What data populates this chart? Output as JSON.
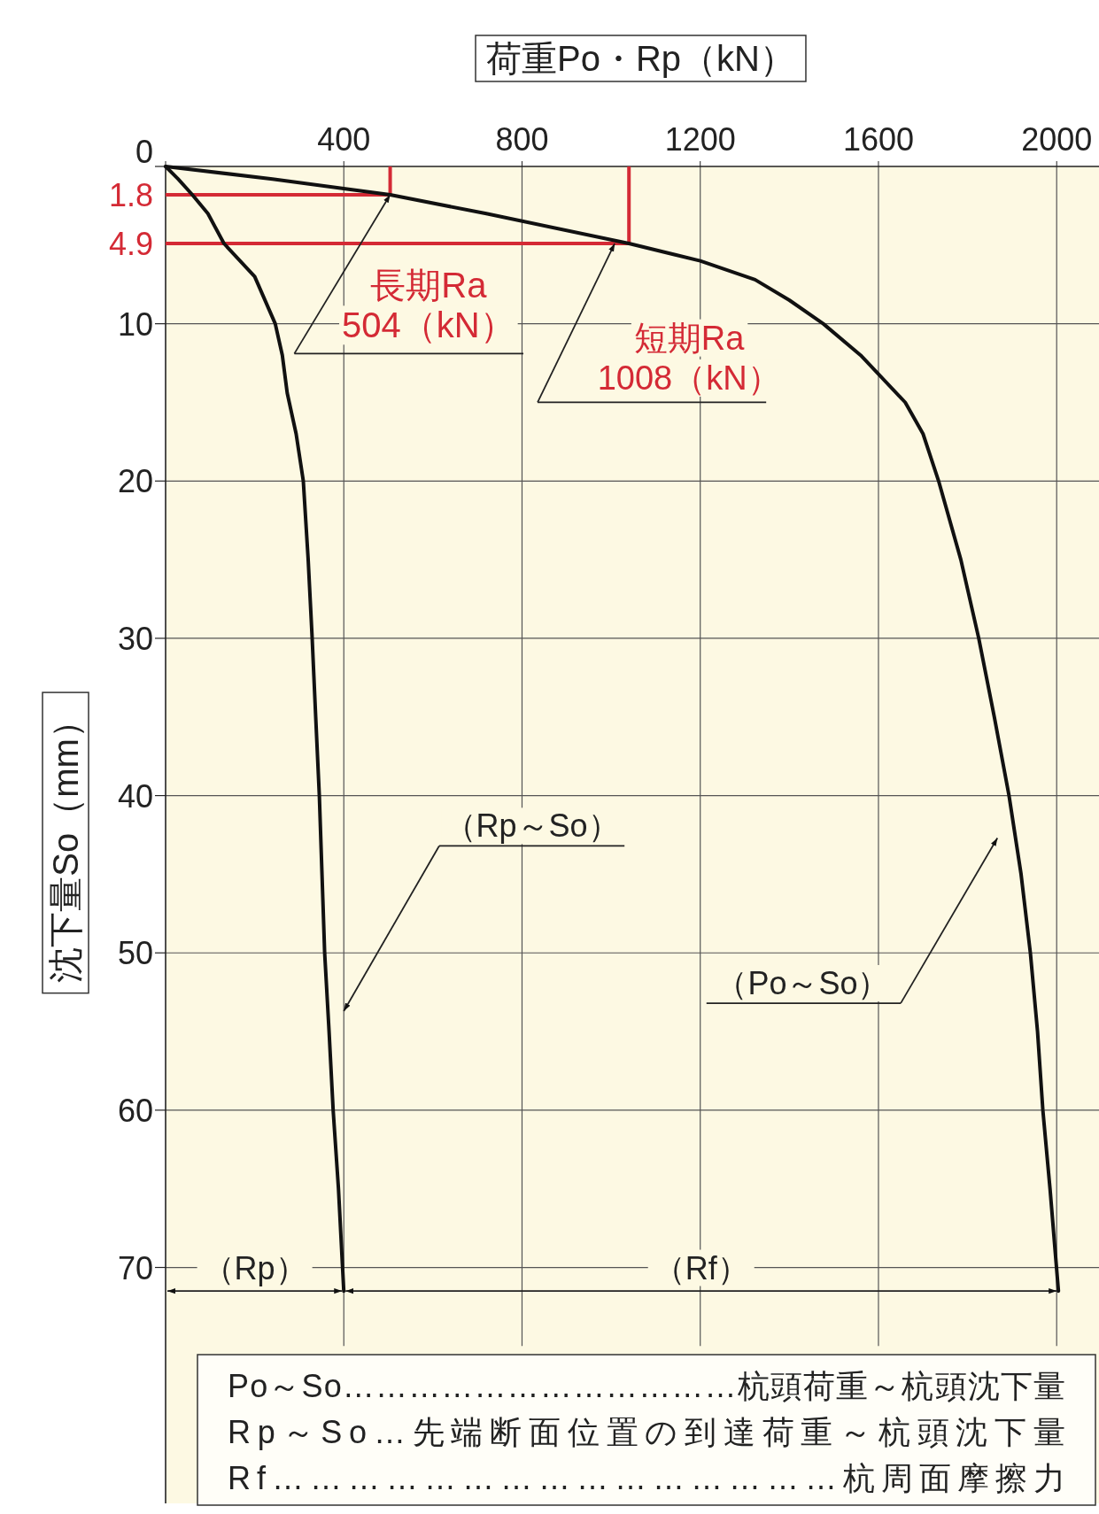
{
  "chart_data": {
    "type": "line",
    "xlabel": "荷重Po・Rp（kN）",
    "ylabel": "沈下量So（mm）",
    "xlim": [
      0,
      2095
    ],
    "ylim": [
      85,
      0
    ],
    "xticks": [
      {
        "value": 0,
        "label": null
      },
      400,
      800,
      1200,
      1600,
      2000
    ],
    "yticks": [
      0,
      10,
      20,
      30,
      40,
      50,
      60,
      70
    ],
    "grid": true,
    "series": [
      {
        "color": "#111111",
        "x": [
          0,
          240,
          504,
          720,
          1040,
          1200,
          1323,
          1400,
          1476,
          1560,
          1660,
          1700,
          1735,
          1785,
          1825,
          1860,
          1893,
          1920,
          1941,
          1957,
          1969,
          1985,
          2004
        ],
        "values": [
          0,
          0.8,
          1.8,
          3,
          4.9,
          6,
          7.2,
          8.5,
          10,
          12,
          15,
          17,
          20,
          25,
          30,
          35,
          40,
          45,
          50,
          55,
          60,
          65,
          71.5
        ]
      },
      {
        "color": "#111111",
        "x": [
          0,
          28,
          60,
          95,
          131,
          200,
          246,
          262,
          273,
          293,
          309,
          320,
          329,
          337,
          345,
          351,
          357,
          367,
          376,
          388,
          400
        ],
        "values": [
          0,
          0.8,
          1.8,
          3,
          4.9,
          7,
          10,
          12,
          14.4,
          17,
          20,
          25,
          30,
          35,
          40,
          45,
          50,
          55,
          60,
          65,
          71.5
        ]
      }
    ],
    "ref_lines": [
      {
        "axis": "y",
        "value": 1.8,
        "label": "1.8",
        "color": "#d42a35"
      },
      {
        "axis": "y",
        "value": 4.9,
        "label": "4.9",
        "color": "#d42a35"
      }
    ],
    "annotations": [
      {
        "text": "長期Ra\n504（kN）",
        "x": 504,
        "y": 1.8
      },
      {
        "text": "短期Ra\n1008（kN）",
        "x": 1008,
        "y": 4.9
      },
      "（Rp～So）",
      "（Po～So）",
      "（Rp）",
      "（Rf）",
      "Po～So………………………………杭頭荷重～杭頭沈下量",
      "Rp～So…先端断面位置の到達荷重～杭頭沈下量",
      "Rf………………………………………杭周面摩擦力"
    ]
  }
}
